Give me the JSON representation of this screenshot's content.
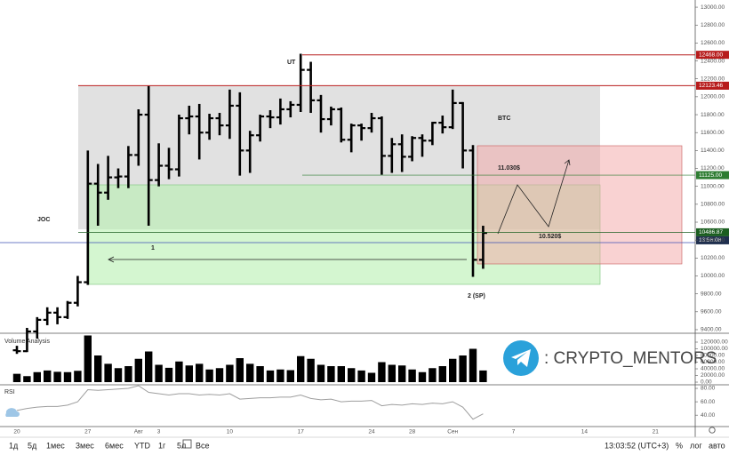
{
  "chart_data": [
    {
      "type": "ohlc",
      "categories": [
        "20",
        null,
        null,
        null,
        null,
        null,
        null,
        "27",
        null,
        null,
        null,
        null,
        "Авг",
        null,
        "3",
        null,
        null,
        null,
        null,
        null,
        null,
        "10",
        null,
        null,
        null,
        null,
        null,
        null,
        "17",
        null,
        null,
        null,
        null,
        null,
        null,
        "24",
        null,
        null,
        null,
        "28",
        null,
        null,
        null,
        "Сен",
        null,
        null,
        null,
        null,
        null,
        "7",
        null,
        null,
        null,
        null,
        null,
        null,
        "14",
        null,
        null,
        null,
        null,
        null,
        null,
        "21"
      ],
      "open": [
        9170,
        9160,
        9380,
        9510,
        9590,
        9540,
        9700,
        9930,
        11030,
        10930,
        11100,
        11110,
        11350,
        11800,
        11070,
        11230,
        11190,
        11760,
        11780,
        11600,
        11760,
        11680,
        11900,
        11400,
        11570,
        11780,
        11770,
        11860,
        11910,
        12300,
        11960,
        11750,
        11860,
        11520,
        11680,
        11650,
        11760,
        11340,
        11470,
        11330,
        11540,
        11510,
        11710,
        11660,
        11930,
        11400,
        10180,
        null,
        null,
        null,
        null,
        null,
        null,
        null,
        null,
        null,
        null,
        null,
        null,
        null,
        null,
        null,
        null,
        null
      ],
      "high": [
        9220,
        9420,
        9540,
        9650,
        9650,
        9720,
        10000,
        11400,
        11250,
        11340,
        11200,
        11450,
        11860,
        12120,
        11480,
        11430,
        11800,
        11900,
        11920,
        11810,
        11820,
        12080,
        12050,
        11620,
        11800,
        11850,
        11980,
        11950,
        12480,
        12390,
        12020,
        11890,
        11880,
        11700,
        11700,
        11820,
        11780,
        11540,
        11580,
        11560,
        11580,
        11720,
        11790,
        12080,
        11940,
        11460,
        10560,
        null,
        null,
        null,
        null,
        null,
        null,
        null,
        null,
        null,
        null,
        null,
        null,
        null,
        null,
        null,
        null,
        null
      ],
      "low": [
        9130,
        9150,
        9300,
        9450,
        9460,
        9520,
        9660,
        9900,
        10560,
        10850,
        10980,
        10980,
        11230,
        10560,
        11000,
        11080,
        11110,
        11580,
        11300,
        11520,
        11570,
        11530,
        11120,
        11150,
        11500,
        11650,
        11690,
        11770,
        11830,
        11820,
        11600,
        11680,
        11490,
        11380,
        11510,
        11600,
        11130,
        11150,
        11160,
        11280,
        11330,
        11460,
        11590,
        11640,
        11200,
        9990,
        10080,
        null,
        null,
        null,
        null,
        null,
        null,
        null,
        null,
        null,
        null,
        null,
        null,
        null,
        null,
        null,
        null,
        null
      ],
      "close": [
        9160,
        9380,
        9510,
        9590,
        9540,
        9700,
        9930,
        11030,
        10930,
        11100,
        11110,
        11350,
        11800,
        11070,
        11230,
        11190,
        11760,
        11780,
        11600,
        11760,
        11680,
        11900,
        11400,
        11570,
        11780,
        11770,
        11860,
        11910,
        12300,
        11960,
        11750,
        11860,
        11520,
        11680,
        11650,
        11760,
        11340,
        11470,
        11330,
        11540,
        11510,
        11710,
        11660,
        11930,
        11400,
        10180,
        10480,
        null,
        null,
        null,
        null,
        null,
        null,
        null,
        null,
        null,
        null,
        null,
        null,
        null,
        null,
        null,
        null,
        null
      ],
      "color": "#000000",
      "ylim": [
        9370,
        13080
      ],
      "yticks": [
        {
          "value": 9400,
          "label": "9400.00"
        },
        {
          "value": 9600,
          "label": "9600.00"
        },
        {
          "value": 9800,
          "label": "9800.00"
        },
        {
          "value": 10000,
          "label": "10000.00"
        },
        {
          "value": 10200,
          "label": "10200.00"
        },
        {
          "value": 10400,
          "label": "10400.00"
        },
        {
          "value": 10600,
          "label": "10600.00"
        },
        {
          "value": 10800,
          "label": "10800.00"
        },
        {
          "value": 11000,
          "label": "11000.00"
        },
        {
          "value": 11200,
          "label": "11200.00"
        },
        {
          "value": 11400,
          "label": "11400.00"
        },
        {
          "value": 11600,
          "label": "11600.00"
        },
        {
          "value": 11800,
          "label": "11800.00"
        },
        {
          "value": 12000,
          "label": "12000.00"
        },
        {
          "value": 12200,
          "label": "12200.00"
        },
        {
          "value": 12400,
          "label": "12400.00"
        },
        {
          "value": 12600,
          "label": "12600.00"
        },
        {
          "value": 12800,
          "label": "12800.00"
        },
        {
          "value": 13000,
          "label": "13000.00"
        }
      ],
      "price_labels": [
        {
          "value": 12468,
          "label": "12468.00",
          "color": "#b71c1c"
        },
        {
          "value": 12123.46,
          "label": "12123.46",
          "color": "#b71c1c"
        },
        {
          "value": 11125,
          "label": "11125.00",
          "color": "#2e7d32"
        },
        {
          "value": 10486.87,
          "label": "10486.87",
          "color": "#1b5e20"
        }
      ],
      "countdown": "13:56:08",
      "annotations": [
        "UT",
        "BTC",
        "JOC",
        "1",
        "2 (SP)",
        "11.030$",
        "10.520$"
      ]
    },
    {
      "type": "bar",
      "title": "Volume Analysis",
      "values": [
        25000,
        18000,
        30000,
        35000,
        31000,
        30000,
        34000,
        140000,
        80000,
        55000,
        42000,
        48000,
        70000,
        92000,
        52000,
        43000,
        62000,
        50000,
        55000,
        38000,
        42000,
        52000,
        72000,
        55000,
        48000,
        35000,
        38000,
        36000,
        78000,
        70000,
        52000,
        48000,
        48000,
        42000,
        35000,
        28000,
        60000,
        52000,
        50000,
        38000,
        30000,
        42000,
        48000,
        70000,
        80000,
        100000,
        35000,
        null,
        null,
        null,
        null,
        null,
        null,
        null,
        null,
        null,
        null,
        null,
        null,
        null,
        null,
        null,
        null,
        null
      ],
      "color": "#000000",
      "ylim": [
        -5300,
        144000
      ],
      "yticks": [
        {
          "value": 0,
          "label": "0.00"
        },
        {
          "value": 20000,
          "label": "20000.00"
        },
        {
          "value": 40000,
          "label": "40000.00"
        },
        {
          "value": 60000,
          "label": "60000.00"
        },
        {
          "value": 80000,
          "label": "80000.00"
        },
        {
          "value": 100000,
          "label": "100000.00"
        },
        {
          "value": 120000,
          "label": "120000.00"
        }
      ]
    },
    {
      "type": "line",
      "title": "RSI",
      "values": [
        47,
        50,
        52,
        53,
        53,
        55,
        60,
        78,
        77,
        78,
        79,
        80,
        84,
        74,
        72,
        70,
        72,
        72,
        70,
        71,
        70,
        72,
        64,
        65,
        66,
        66,
        67,
        67,
        70,
        65,
        63,
        64,
        60,
        61,
        61,
        62,
        54,
        56,
        55,
        57,
        56,
        58,
        57,
        60,
        52,
        34,
        42,
        null,
        null,
        null,
        null,
        null,
        null,
        null,
        null,
        null,
        null,
        null,
        null,
        null,
        null,
        null,
        null,
        null
      ],
      "color": "#9e9e9e",
      "ylim": [
        23,
        84
      ],
      "yticks": [
        {
          "value": 40,
          "label": "40.00"
        },
        {
          "value": 60,
          "label": "60.00"
        },
        {
          "value": 80,
          "label": "80.00"
        }
      ]
    }
  ],
  "watermark": ": CRYPTO_MENTORS",
  "toolbar": {
    "ranges": [
      "1д",
      "5д",
      "1мес",
      "3мес",
      "6мес",
      "YTD",
      "1г",
      "5л",
      "Все"
    ],
    "clock": "13:03:52 (UTC+3)",
    "right": [
      "%",
      "лог",
      "авто"
    ]
  }
}
